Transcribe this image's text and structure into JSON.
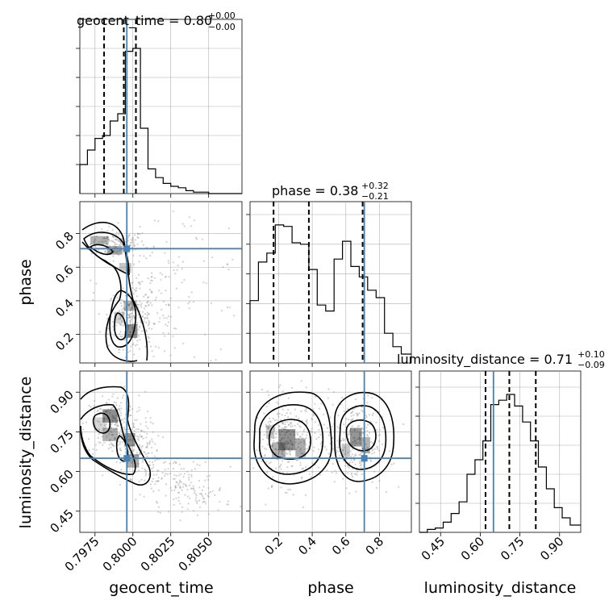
{
  "chart_data": {
    "type": "corner",
    "parameters": [
      {
        "name": "geocent_time",
        "axis_label": "geocent_time",
        "title_main": "geocent_time = 0.80",
        "title_sup": "+0.00",
        "title_sub": "−0.00",
        "range": [
          0.7965,
          0.8072
        ],
        "ticks": [
          0.7975,
          0.8,
          0.8025,
          0.805
        ],
        "tick_labels": [
          "0.7975",
          "0.8000",
          "0.8025",
          "0.8050"
        ],
        "truth": 0.7996,
        "quantiles": [
          0.7981,
          0.7994,
          0.8002
        ],
        "hist_edges": [
          0.7965,
          0.797,
          0.7975,
          0.798,
          0.7985,
          0.799,
          0.7995,
          0.8,
          0.8005,
          0.801,
          0.8015,
          0.802,
          0.8025,
          0.803,
          0.8035,
          0.804,
          0.8045,
          0.805,
          0.8055,
          0.806,
          0.8065,
          0.8072
        ],
        "hist_counts": [
          0.2,
          0.3,
          0.38,
          0.4,
          0.5,
          0.55,
          0.98,
          1.0,
          0.45,
          0.17,
          0.11,
          0.07,
          0.05,
          0.04,
          0.02,
          0.01,
          0.01,
          0.0,
          0.0,
          0.0,
          0.0
        ]
      },
      {
        "name": "phase",
        "axis_label": "phase",
        "title_main": "phase = 0.38",
        "title_sup": "+0.32",
        "title_sub": "−0.21",
        "range": [
          0.03,
          0.99
        ],
        "ticks": [
          0.2,
          0.4,
          0.6,
          0.8
        ],
        "tick_labels": [
          "0.2",
          "0.4",
          "0.6",
          "0.8"
        ],
        "truth": 0.71,
        "quantiles": [
          0.17,
          0.38,
          0.7
        ],
        "hist_edges": [
          0.03,
          0.08,
          0.13,
          0.18,
          0.23,
          0.28,
          0.33,
          0.38,
          0.43,
          0.48,
          0.53,
          0.58,
          0.63,
          0.68,
          0.73,
          0.78,
          0.83,
          0.88,
          0.93,
          0.99
        ],
        "hist_counts": [
          0.42,
          0.68,
          0.74,
          0.93,
          0.92,
          0.81,
          0.8,
          0.63,
          0.39,
          0.35,
          0.7,
          0.82,
          0.65,
          0.58,
          0.49,
          0.44,
          0.2,
          0.11,
          0.06
        ]
      },
      {
        "name": "luminosity_distance",
        "axis_label": "luminosity_distance",
        "title_main": "luminosity_distance = 0.71",
        "title_sup": "+0.10",
        "title_sub": "−0.09",
        "range": [
          0.37,
          0.98
        ],
        "ticks": [
          0.45,
          0.6,
          0.75,
          0.9
        ],
        "tick_labels": [
          "0.45",
          "0.60",
          "0.75",
          "0.90"
        ],
        "truth": 0.65,
        "quantiles": [
          0.62,
          0.71,
          0.81
        ],
        "hist_edges": [
          0.37,
          0.4,
          0.43,
          0.46,
          0.49,
          0.52,
          0.55,
          0.58,
          0.61,
          0.64,
          0.67,
          0.7,
          0.73,
          0.76,
          0.79,
          0.82,
          0.85,
          0.88,
          0.91,
          0.94,
          0.98
        ],
        "hist_counts": [
          0.0,
          0.02,
          0.03,
          0.07,
          0.13,
          0.21,
          0.4,
          0.5,
          0.63,
          0.88,
          0.91,
          0.95,
          0.87,
          0.76,
          0.63,
          0.45,
          0.3,
          0.17,
          0.1,
          0.05
        ]
      }
    ],
    "grid": true
  }
}
